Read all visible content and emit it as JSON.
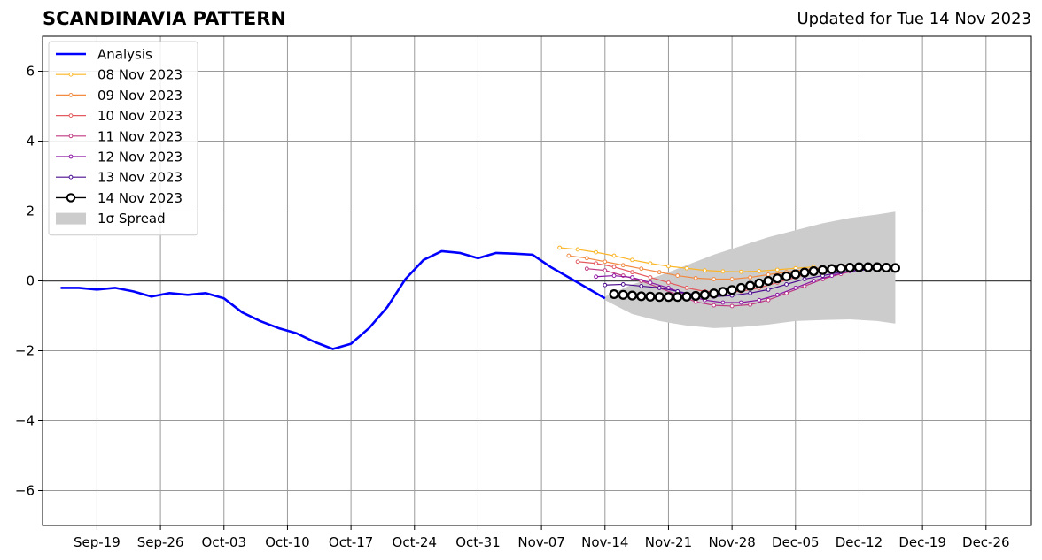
{
  "title": "SCANDINAVIA PATTERN",
  "subtitle": "Updated for Tue 14 Nov 2023",
  "chart_data": {
    "type": "line",
    "title": "SCANDINAVIA PATTERN",
    "subtitle": "Updated for Tue 14 Nov 2023",
    "xlabel": "",
    "ylabel": "",
    "xlim": [
      "2023-09-13",
      "2023-12-31"
    ],
    "ylim": [
      -7,
      7
    ],
    "grid": true,
    "legend_position": "top-left",
    "x_ticks": [
      "Sep-19",
      "Sep-26",
      "Oct-03",
      "Oct-10",
      "Oct-17",
      "Oct-24",
      "Oct-31",
      "Nov-07",
      "Nov-14",
      "Nov-21",
      "Nov-28",
      "Dec-05",
      "Dec-12",
      "Dec-19",
      "Dec-26"
    ],
    "x_tick_dates": [
      "2023-09-19",
      "2023-09-26",
      "2023-10-03",
      "2023-10-10",
      "2023-10-17",
      "2023-10-24",
      "2023-10-31",
      "2023-11-07",
      "2023-11-14",
      "2023-11-21",
      "2023-11-28",
      "2023-12-05",
      "2023-12-12",
      "2023-12-19",
      "2023-12-26"
    ],
    "y_ticks": [
      "−6",
      "−4",
      "−2",
      "0",
      "2",
      "4",
      "6"
    ],
    "y_tick_values": [
      -6,
      -4,
      -2,
      0,
      2,
      4,
      6
    ],
    "zero_line": 0,
    "series": [
      {
        "name": "Analysis",
        "color": "#0000ff",
        "style": "thick-line",
        "x": [
          "2023-09-15",
          "2023-09-17",
          "2023-09-19",
          "2023-09-21",
          "2023-09-23",
          "2023-09-25",
          "2023-09-27",
          "2023-09-29",
          "2023-10-01",
          "2023-10-03",
          "2023-10-05",
          "2023-10-07",
          "2023-10-09",
          "2023-10-11",
          "2023-10-13",
          "2023-10-15",
          "2023-10-17",
          "2023-10-19",
          "2023-10-21",
          "2023-10-23",
          "2023-10-25",
          "2023-10-27",
          "2023-10-29",
          "2023-10-31",
          "2023-11-02",
          "2023-11-04",
          "2023-11-06",
          "2023-11-08",
          "2023-11-10",
          "2023-11-12",
          "2023-11-14"
        ],
        "values": [
          -0.2,
          -0.2,
          -0.25,
          -0.2,
          -0.3,
          -0.45,
          -0.35,
          -0.4,
          -0.35,
          -0.5,
          -0.9,
          -1.15,
          -1.35,
          -1.5,
          -1.75,
          -1.95,
          -1.8,
          -1.35,
          -0.75,
          0.05,
          0.6,
          0.85,
          0.8,
          0.65,
          0.8,
          0.78,
          0.75,
          0.4,
          0.1,
          -0.2,
          -0.5
        ]
      },
      {
        "name": "08 Nov 2023",
        "color": "#fcb524",
        "style": "small-dots",
        "x": [
          "2023-11-09",
          "2023-11-11",
          "2023-11-13",
          "2023-11-15",
          "2023-11-17",
          "2023-11-19",
          "2023-11-21",
          "2023-11-23",
          "2023-11-25",
          "2023-11-27",
          "2023-11-29",
          "2023-12-01",
          "2023-12-03",
          "2023-12-05",
          "2023-12-07"
        ],
        "values": [
          0.95,
          0.9,
          0.82,
          0.72,
          0.6,
          0.5,
          0.42,
          0.36,
          0.3,
          0.27,
          0.26,
          0.28,
          0.32,
          0.36,
          0.4
        ]
      },
      {
        "name": "09 Nov 2023",
        "color": "#f28a42",
        "style": "small-dots",
        "x": [
          "2023-11-10",
          "2023-11-12",
          "2023-11-14",
          "2023-11-16",
          "2023-11-18",
          "2023-11-20",
          "2023-11-22",
          "2023-11-24",
          "2023-11-26",
          "2023-11-28",
          "2023-11-30",
          "2023-12-02",
          "2023-12-04",
          "2023-12-06",
          "2023-12-08"
        ],
        "values": [
          0.72,
          0.65,
          0.55,
          0.45,
          0.35,
          0.25,
          0.15,
          0.08,
          0.05,
          0.05,
          0.1,
          0.18,
          0.25,
          0.32,
          0.38
        ]
      },
      {
        "name": "10 Nov 2023",
        "color": "#e35a5f",
        "style": "small-dots",
        "x": [
          "2023-11-11",
          "2023-11-13",
          "2023-11-15",
          "2023-11-17",
          "2023-11-19",
          "2023-11-21",
          "2023-11-23",
          "2023-11-25",
          "2023-11-27",
          "2023-11-29",
          "2023-12-01",
          "2023-12-03",
          "2023-12-05",
          "2023-12-07",
          "2023-12-09",
          "2023-12-11"
        ],
        "values": [
          0.55,
          0.5,
          0.4,
          0.25,
          0.1,
          -0.05,
          -0.2,
          -0.3,
          -0.32,
          -0.3,
          -0.2,
          -0.05,
          0.1,
          0.25,
          0.38,
          0.45
        ]
      },
      {
        "name": "11 Nov 2023",
        "color": "#c03a83",
        "style": "small-dots",
        "x": [
          "2023-11-12",
          "2023-11-14",
          "2023-11-16",
          "2023-11-18",
          "2023-11-20",
          "2023-11-22",
          "2023-11-24",
          "2023-11-26",
          "2023-11-28",
          "2023-11-30",
          "2023-12-02",
          "2023-12-04",
          "2023-12-06",
          "2023-12-08",
          "2023-12-10",
          "2023-12-12",
          "2023-12-14"
        ],
        "values": [
          0.35,
          0.3,
          0.15,
          0.0,
          -0.2,
          -0.4,
          -0.6,
          -0.7,
          -0.72,
          -0.68,
          -0.55,
          -0.35,
          -0.15,
          0.05,
          0.2,
          0.32,
          0.4
        ]
      },
      {
        "name": "12 Nov 2023",
        "color": "#8b16a3",
        "style": "small-dots",
        "x": [
          "2023-11-13",
          "2023-11-15",
          "2023-11-17",
          "2023-11-19",
          "2023-11-21",
          "2023-11-23",
          "2023-11-25",
          "2023-11-27",
          "2023-11-29",
          "2023-12-01",
          "2023-12-03",
          "2023-12-05",
          "2023-12-07",
          "2023-12-09",
          "2023-12-11",
          "2023-12-13",
          "2023-12-15"
        ],
        "values": [
          0.12,
          0.15,
          0.1,
          -0.05,
          -0.2,
          -0.4,
          -0.55,
          -0.62,
          -0.62,
          -0.55,
          -0.4,
          -0.2,
          0.0,
          0.15,
          0.28,
          0.35,
          0.38
        ]
      },
      {
        "name": "13 Nov 2023",
        "color": "#4c0c8f",
        "style": "small-dots",
        "x": [
          "2023-11-14",
          "2023-11-16",
          "2023-11-18",
          "2023-11-20",
          "2023-11-22",
          "2023-11-24",
          "2023-11-26",
          "2023-11-28",
          "2023-11-30",
          "2023-12-02",
          "2023-12-04",
          "2023-12-06",
          "2023-12-08",
          "2023-12-10",
          "2023-12-12",
          "2023-12-14",
          "2023-12-16"
        ],
        "values": [
          -0.12,
          -0.1,
          -0.15,
          -0.2,
          -0.3,
          -0.4,
          -0.45,
          -0.42,
          -0.35,
          -0.25,
          -0.1,
          0.05,
          0.15,
          0.25,
          0.3,
          0.35,
          0.38
        ]
      },
      {
        "name": "14 Nov 2023",
        "color": "#000000",
        "style": "open-circles",
        "x": [
          "2023-11-15",
          "2023-11-16",
          "2023-11-17",
          "2023-11-18",
          "2023-11-19",
          "2023-11-20",
          "2023-11-21",
          "2023-11-22",
          "2023-11-23",
          "2023-11-24",
          "2023-11-25",
          "2023-11-26",
          "2023-11-27",
          "2023-11-28",
          "2023-11-29",
          "2023-11-30",
          "2023-12-01",
          "2023-12-02",
          "2023-12-03",
          "2023-12-04",
          "2023-12-05",
          "2023-12-06",
          "2023-12-07",
          "2023-12-08",
          "2023-12-09",
          "2023-12-10",
          "2023-12-11",
          "2023-12-12",
          "2023-12-13",
          "2023-12-14",
          "2023-12-15",
          "2023-12-16"
        ],
        "values": [
          -0.38,
          -0.4,
          -0.42,
          -0.44,
          -0.45,
          -0.46,
          -0.46,
          -0.46,
          -0.45,
          -0.43,
          -0.4,
          -0.36,
          -0.31,
          -0.26,
          -0.2,
          -0.14,
          -0.07,
          0.0,
          0.07,
          0.13,
          0.19,
          0.24,
          0.28,
          0.31,
          0.34,
          0.36,
          0.38,
          0.39,
          0.39,
          0.39,
          0.38,
          0.37
        ]
      }
    ],
    "spread": {
      "name": "1σ Spread",
      "color": "#cccccc",
      "x": [
        "2023-11-14",
        "2023-11-17",
        "2023-11-20",
        "2023-11-23",
        "2023-11-26",
        "2023-11-29",
        "2023-12-02",
        "2023-12-05",
        "2023-12-08",
        "2023-12-11",
        "2023-12-14",
        "2023-12-16"
      ],
      "upper": [
        -0.45,
        -0.1,
        0.15,
        0.45,
        0.75,
        1.0,
        1.25,
        1.45,
        1.65,
        1.8,
        1.9,
        1.98
      ],
      "lower": [
        -0.55,
        -0.95,
        -1.15,
        -1.28,
        -1.35,
        -1.32,
        -1.25,
        -1.15,
        -1.12,
        -1.1,
        -1.15,
        -1.22
      ]
    },
    "legend": [
      {
        "label": "Analysis",
        "color": "#0000ff",
        "marker": "line"
      },
      {
        "label": "08 Nov 2023",
        "color": "#fcb524",
        "marker": "dot-line"
      },
      {
        "label": "09 Nov 2023",
        "color": "#f28a42",
        "marker": "dot-line"
      },
      {
        "label": "10 Nov 2023",
        "color": "#e35a5f",
        "marker": "dot-line"
      },
      {
        "label": "11 Nov 2023",
        "color": "#c03a83",
        "marker": "dot-line"
      },
      {
        "label": "12 Nov 2023",
        "color": "#8b16a3",
        "marker": "dot-line"
      },
      {
        "label": "13 Nov 2023",
        "color": "#4c0c8f",
        "marker": "dot-line"
      },
      {
        "label": "14 Nov 2023",
        "color": "#000000",
        "marker": "circle-line"
      },
      {
        "label": "1σ Spread",
        "color": "#cccccc",
        "marker": "patch"
      }
    ]
  }
}
